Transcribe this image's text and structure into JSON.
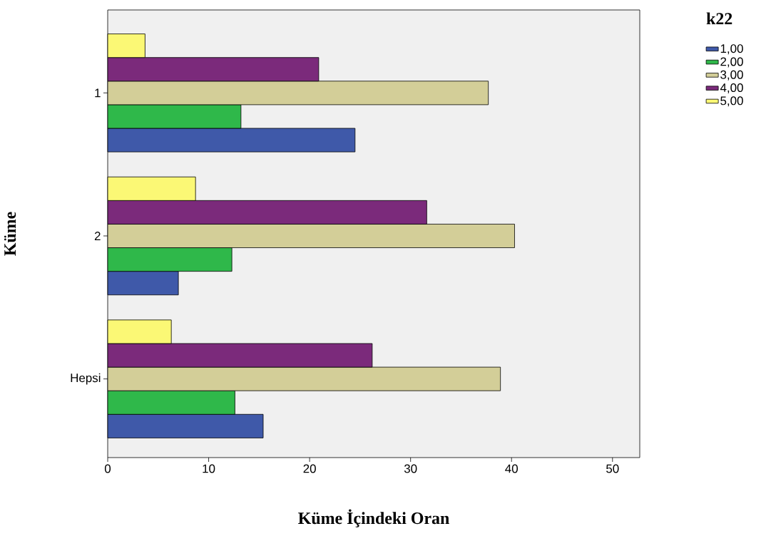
{
  "chart_data": {
    "type": "bar",
    "orientation": "horizontal",
    "xlabel": "Küme İçindeki Oran",
    "ylabel": "Küme",
    "legend_title": "k22",
    "legend": "top right",
    "categories": [
      "1",
      "2",
      "Hepsi"
    ],
    "xlim": [
      0,
      52.7
    ],
    "xticks": [
      0,
      10,
      20,
      30,
      40,
      50
    ],
    "series": [
      {
        "name": "1,00",
        "color": "#3f59a9",
        "values": [
          24.5,
          7.0,
          15.4
        ]
      },
      {
        "name": "2,00",
        "color": "#2fb84a",
        "values": [
          13.2,
          12.3,
          12.6
        ]
      },
      {
        "name": "3,00",
        "color": "#d3ce98",
        "values": [
          37.7,
          40.3,
          38.9
        ]
      },
      {
        "name": "4,00",
        "color": "#7b2a7b",
        "values": [
          20.9,
          31.6,
          26.2
        ]
      },
      {
        "name": "5,00",
        "color": "#fbf875",
        "values": [
          3.7,
          8.7,
          6.3
        ]
      }
    ]
  }
}
